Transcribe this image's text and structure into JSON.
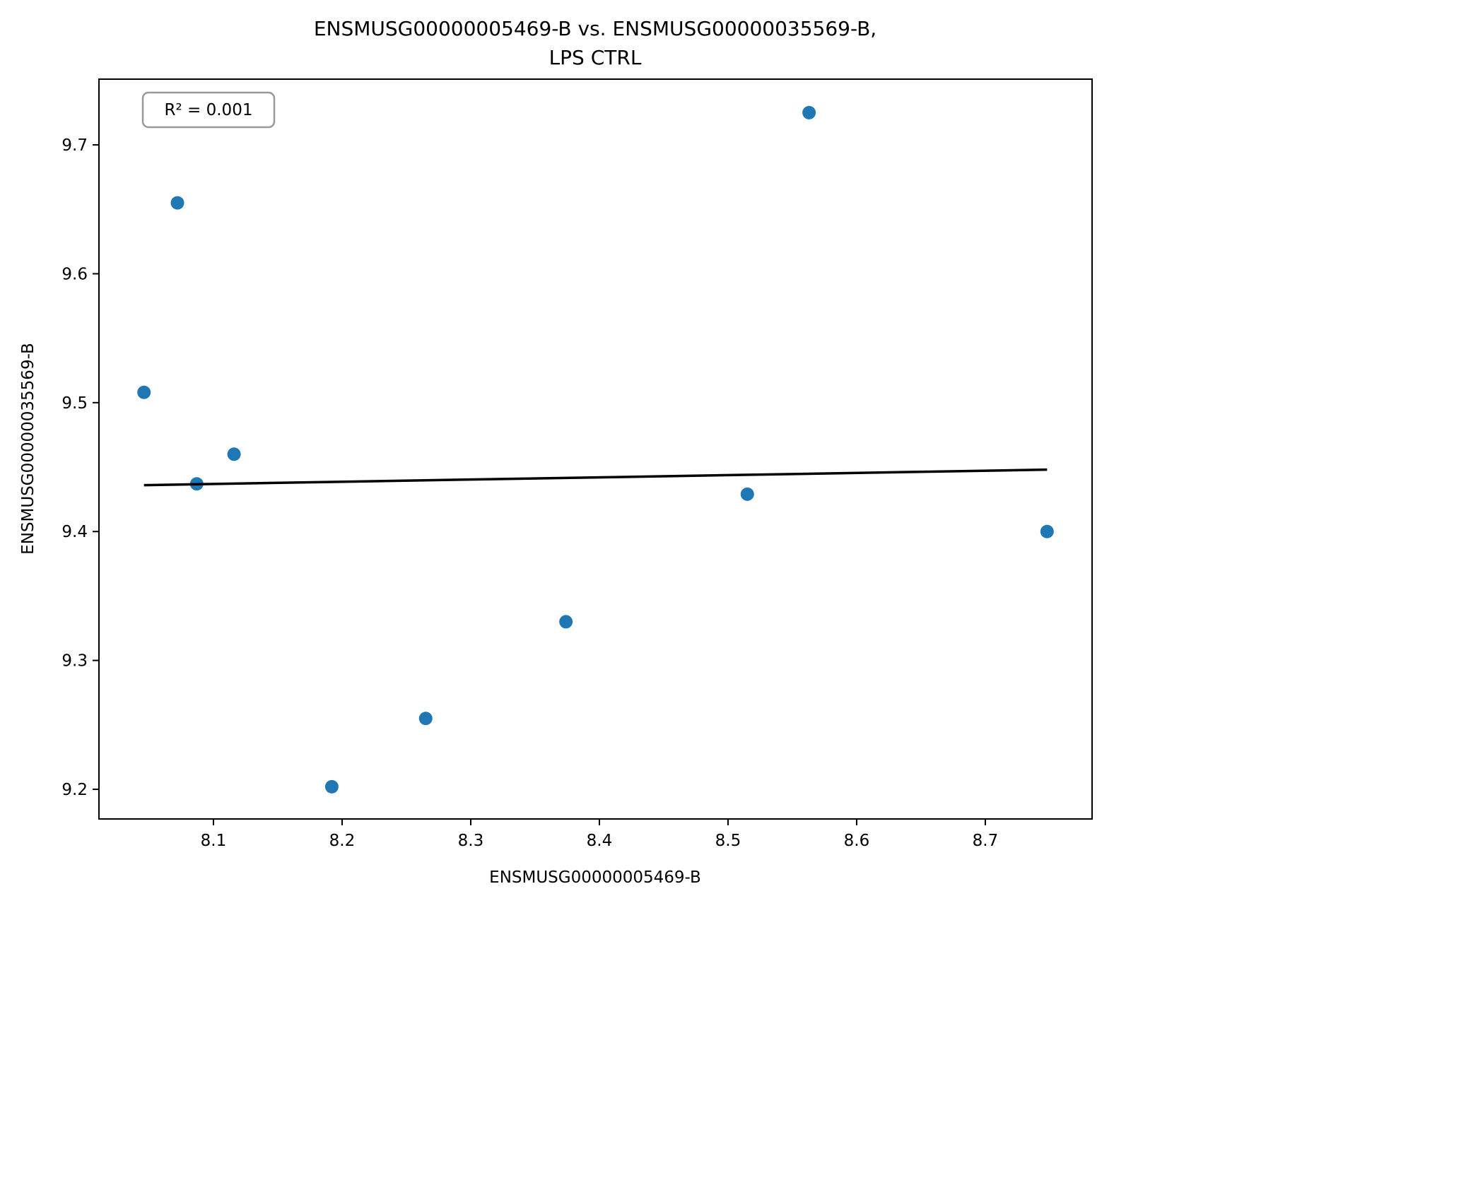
{
  "chart_data": {
    "type": "scatter",
    "title_lines": [
      "ENSMUSG00000005469-B vs. ENSMUSG00000035569-B,",
      "LPS CTRL"
    ],
    "xlabel": "ENSMUSG00000005469-B",
    "ylabel": "ENSMUSG00000035569-B",
    "xlim": [
      8.011,
      8.783
    ],
    "ylim": [
      9.177,
      9.751
    ],
    "xticks": [
      8.1,
      8.2,
      8.3,
      8.4,
      8.5,
      8.6,
      8.7
    ],
    "yticks": [
      9.2,
      9.3,
      9.4,
      9.5,
      9.6,
      9.7
    ],
    "xtick_labels": [
      "8.1",
      "8.2",
      "8.3",
      "8.4",
      "8.5",
      "8.6",
      "8.7"
    ],
    "ytick_labels": [
      "9.2",
      "9.3",
      "9.4",
      "9.5",
      "9.6",
      "9.7"
    ],
    "grid": false,
    "point_color": "#1f77b4",
    "line_color": "#000000",
    "points": [
      {
        "x": 8.046,
        "y": 9.508
      },
      {
        "x": 8.072,
        "y": 9.655
      },
      {
        "x": 8.087,
        "y": 9.437
      },
      {
        "x": 8.116,
        "y": 9.46
      },
      {
        "x": 8.192,
        "y": 9.202
      },
      {
        "x": 8.265,
        "y": 9.255
      },
      {
        "x": 8.374,
        "y": 9.33
      },
      {
        "x": 8.515,
        "y": 9.429
      },
      {
        "x": 8.563,
        "y": 9.725
      },
      {
        "x": 8.748,
        "y": 9.4
      }
    ],
    "fit_line": {
      "x": [
        8.046,
        8.748
      ],
      "y": [
        9.436,
        9.448
      ]
    },
    "annotation": {
      "text": "R² = 0.001",
      "placement": "top-left"
    }
  }
}
